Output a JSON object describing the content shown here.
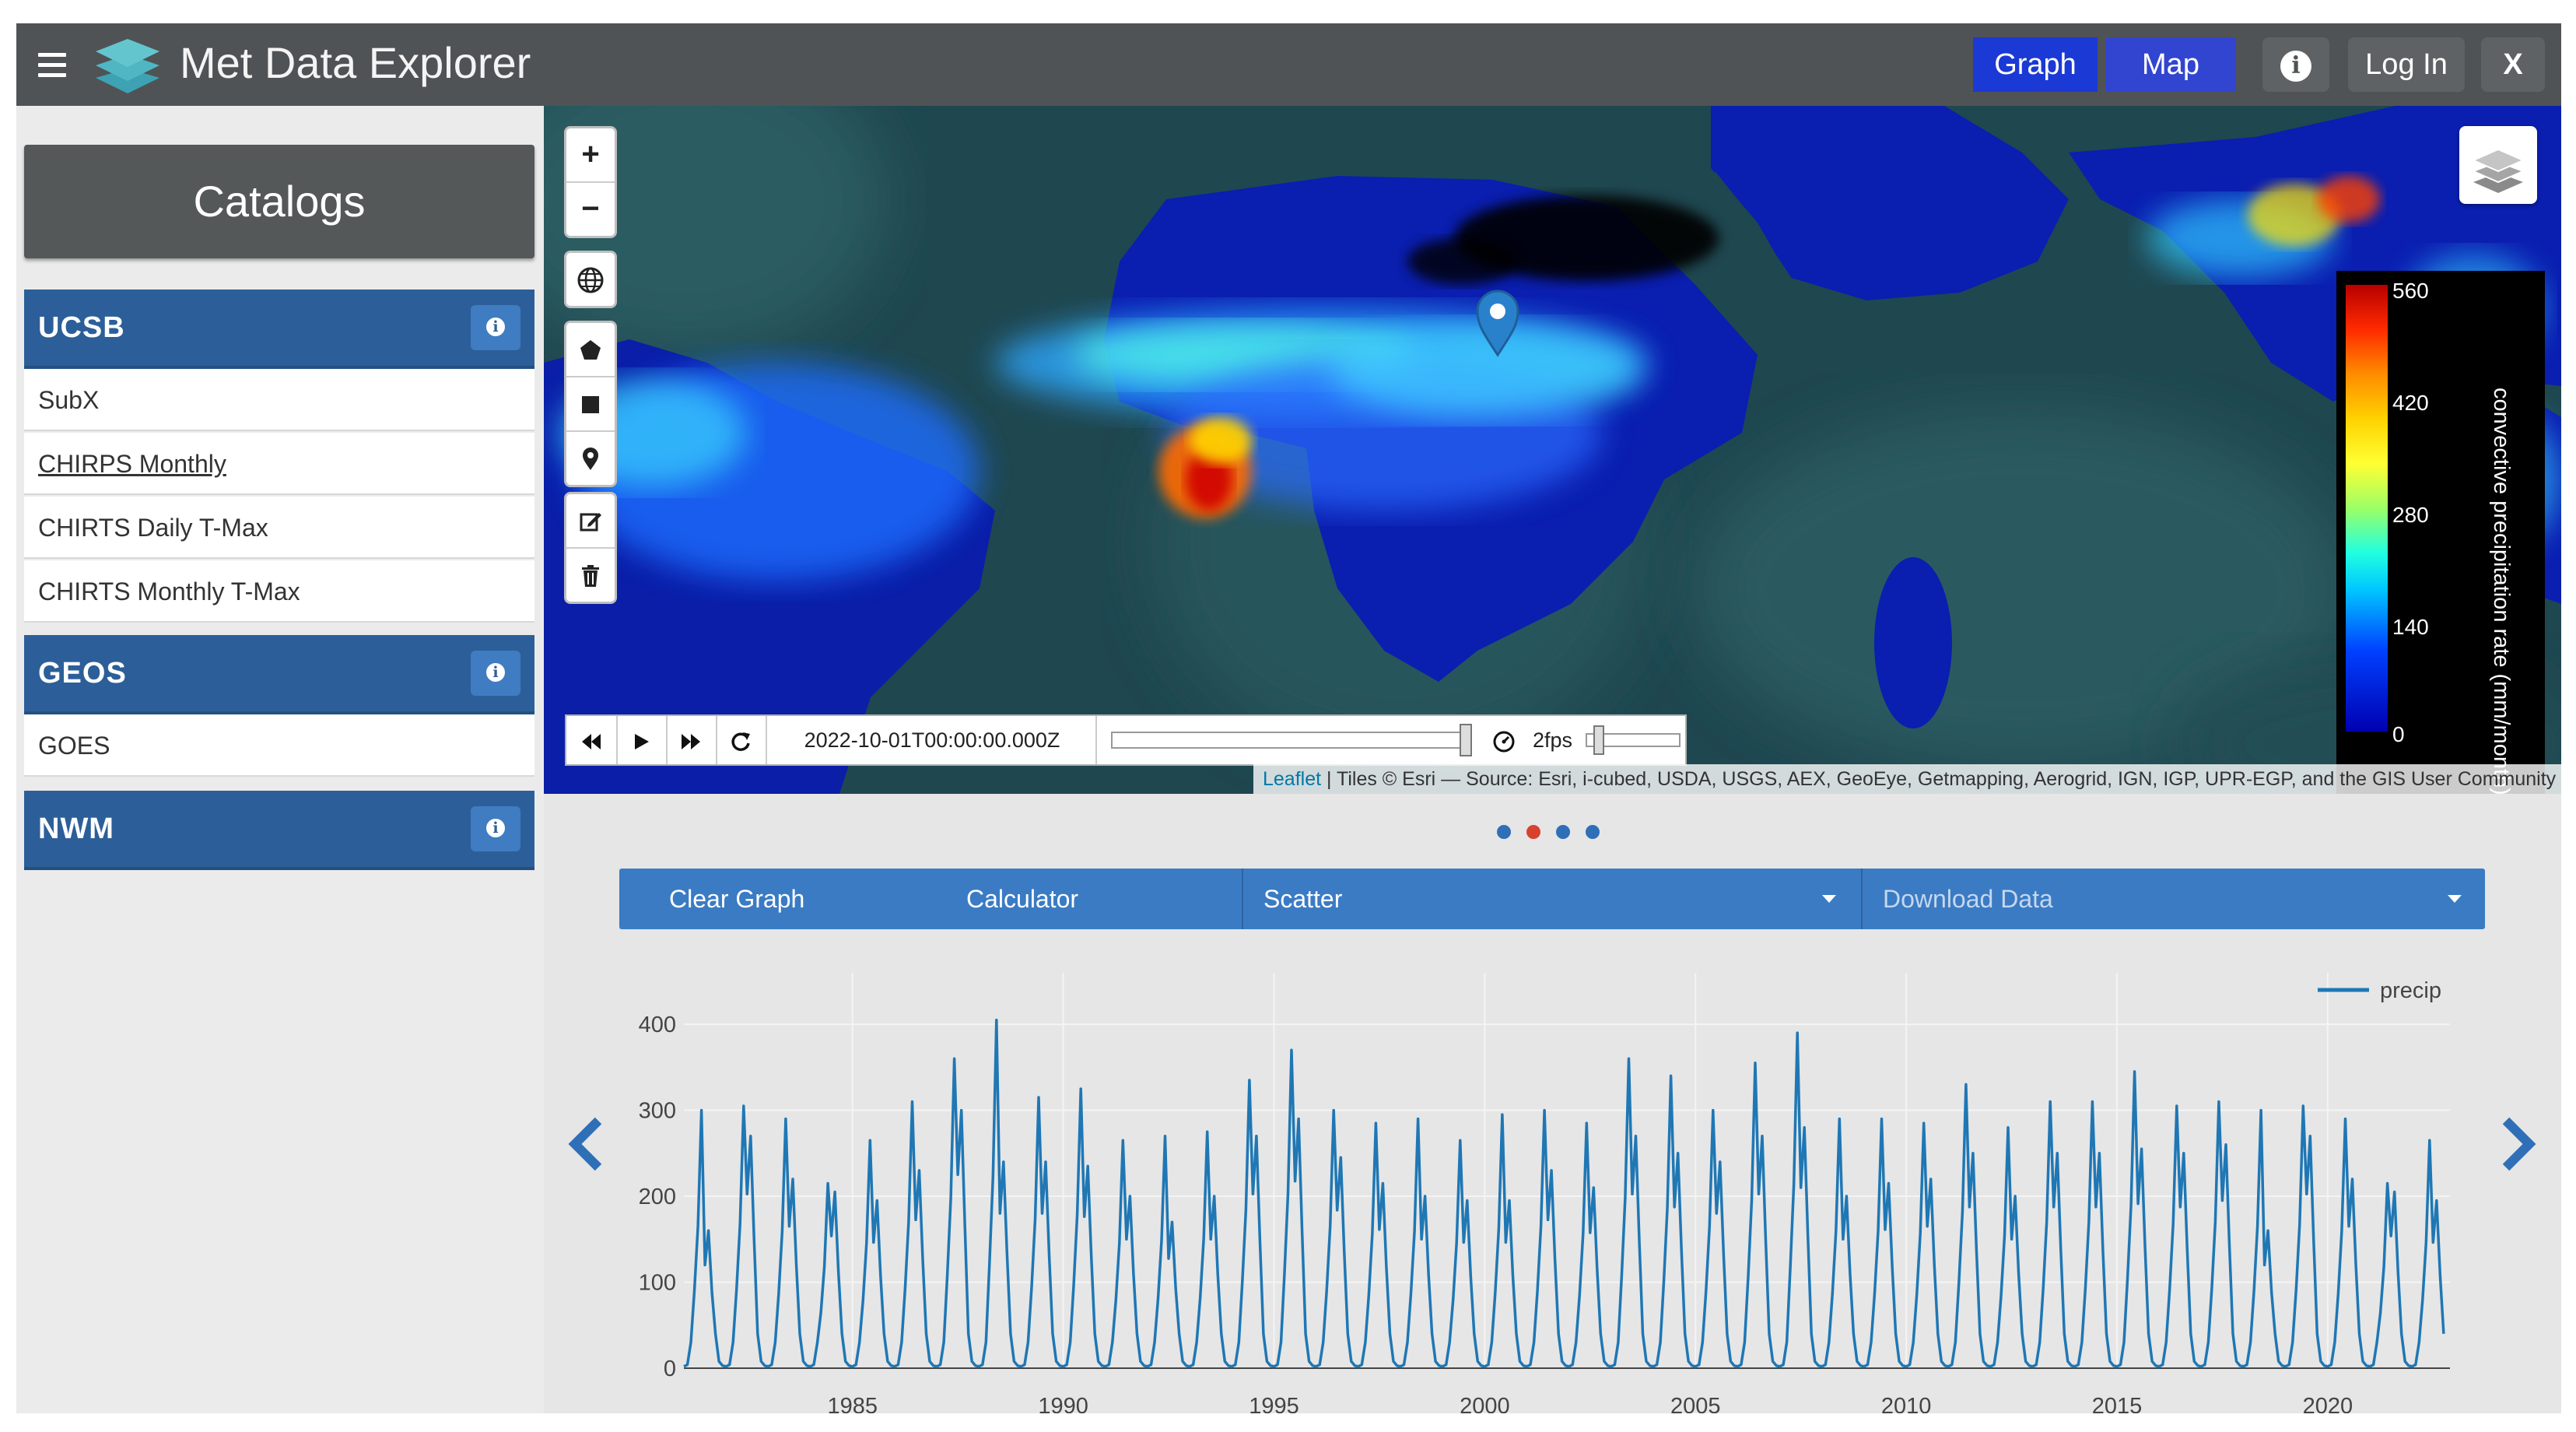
{
  "header": {
    "title": "Met Data Explorer",
    "buttons": {
      "graph": "Graph",
      "map": "Map",
      "info": "i",
      "login": "Log In",
      "close": "X"
    }
  },
  "sidebar": {
    "catalogs_label": "Catalogs",
    "groups": [
      {
        "name": "UCSB",
        "items": [
          "SubX",
          "CHIRPS Monthly",
          "CHIRTS Daily T-Max",
          "CHIRTS Monthly T-Max"
        ]
      },
      {
        "name": "GEOS",
        "items": [
          "GOES"
        ]
      },
      {
        "name": "NWM",
        "items": []
      }
    ],
    "info_icon": "i"
  },
  "map": {
    "zoom_in": "+",
    "zoom_out": "−",
    "legend": {
      "title": "convective precipitation rate (mm/month)",
      "ticks": [
        "560",
        "420",
        "280",
        "140",
        "0"
      ]
    },
    "time_control": {
      "timestamp": "2022-10-01T00:00:00.000Z",
      "fps": "2fps",
      "position": 1.0
    },
    "attribution": {
      "leaflet": "Leaflet",
      "text": " | Tiles © Esri — Source: Esri, i-cubed, USDA, USGS, AEX, GeoEye, Getmapping, Aerogrid, IGN, IGP, UPR-EGP, and the GIS User Community"
    },
    "icons": [
      "zoom-in-icon",
      "zoom-out-icon",
      "globe-icon",
      "polygon-icon",
      "rectangle-icon",
      "marker-icon",
      "edit-icon",
      "trash-icon",
      "layers-icon"
    ]
  },
  "panel": {
    "carousel_dots": 4,
    "active_dot": 1,
    "toolbar": {
      "clear_graph": "Clear Graph",
      "calculator": "Calculator",
      "plot_type": "Scatter",
      "download": "Download Data"
    }
  },
  "chart_data": {
    "type": "line",
    "series": [
      {
        "name": "precip"
      }
    ],
    "x_start": 1981.0,
    "x_end": 2022.75,
    "x_ticks": [
      1985,
      1990,
      1995,
      2000,
      2005,
      2010,
      2015,
      2020
    ],
    "y_ticks": [
      0,
      100,
      200,
      300,
      400
    ],
    "ylim": [
      0,
      420
    ],
    "grid": true,
    "legend_position": "top-right",
    "peaks": [
      300,
      305,
      290,
      215,
      265,
      310,
      360,
      405,
      315,
      325,
      265,
      270,
      275,
      335,
      370,
      300,
      285,
      290,
      265,
      295,
      300,
      285,
      360,
      340,
      300,
      355,
      390,
      290,
      290,
      285,
      330,
      280,
      310,
      310,
      345,
      305,
      310
    ],
    "secondary": [
      160,
      270,
      220,
      205,
      195,
      230,
      300,
      240,
      240,
      235,
      200,
      170,
      200,
      270,
      290,
      245,
      215,
      200,
      195,
      195,
      230,
      210,
      270,
      250,
      240,
      270,
      280,
      200,
      215,
      220,
      250,
      200,
      250,
      250,
      255,
      250,
      260
    ],
    "color": "#1f77b4"
  }
}
